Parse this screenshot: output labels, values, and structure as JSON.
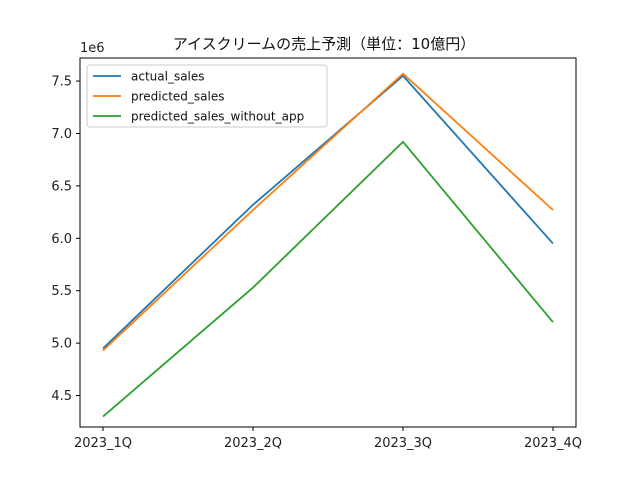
{
  "chart_data": {
    "type": "line",
    "title": "アイスクリームの売上予測（単位：10億円）",
    "xlabel": "",
    "ylabel": "",
    "y_multiplier_label": "1e6",
    "categories": [
      "2023_1Q",
      "2023_2Q",
      "2023_3Q",
      "2023_4Q"
    ],
    "ylim": [
      4.2,
      7.72
    ],
    "yticks": [
      4.5,
      5.0,
      5.5,
      6.0,
      6.5,
      7.0,
      7.5
    ],
    "ytick_labels": [
      "4.5",
      "5.0",
      "5.5",
      "6.0",
      "6.5",
      "7.0",
      "7.5"
    ],
    "grid": false,
    "legend_position": "top-left",
    "series": [
      {
        "name": "actual_sales",
        "color": "#1f77b4",
        "values": [
          4.95,
          6.32,
          7.55,
          5.95
        ]
      },
      {
        "name": "predicted_sales",
        "color": "#ff7f0e",
        "values": [
          4.93,
          6.27,
          7.57,
          6.27
        ]
      },
      {
        "name": "predicted_sales_without_app",
        "color": "#2ca02c",
        "values": [
          4.3,
          5.53,
          6.92,
          5.2
        ]
      }
    ]
  }
}
